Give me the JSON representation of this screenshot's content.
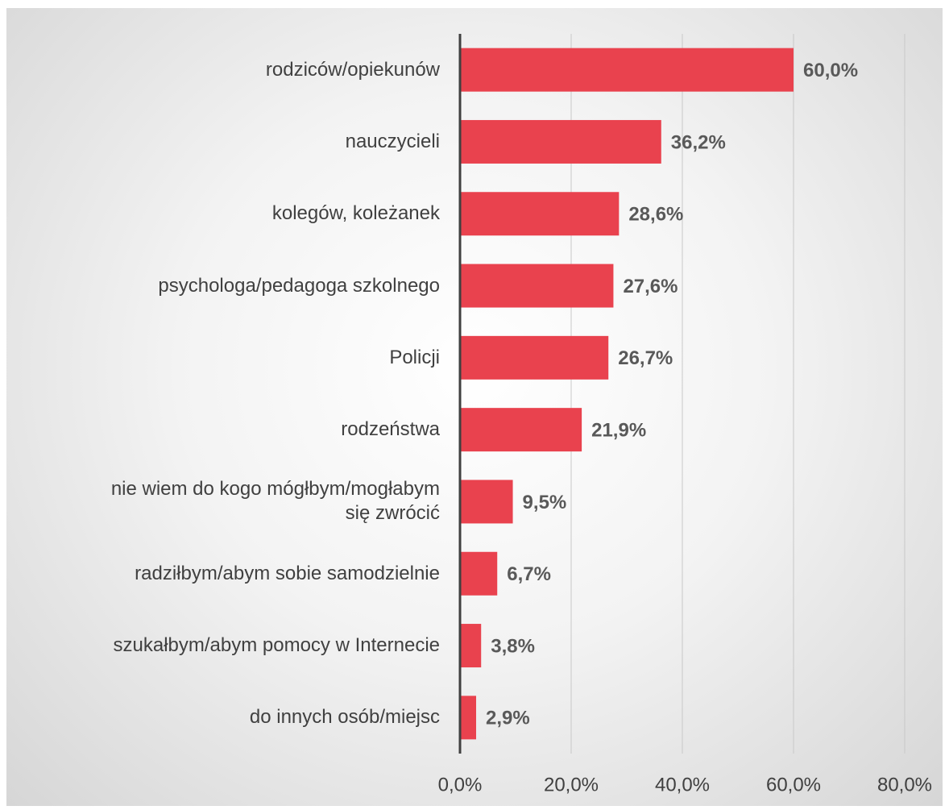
{
  "chart_data": {
    "type": "barh",
    "categories": [
      "rodziców/opiekunów",
      "nauczycieli",
      "kolegów, koleżanek",
      "psychologa/pedagoga szkolnego",
      "Policji",
      "rodzeństwa",
      "nie wiem do kogo mógłbym/mogłabym się zwrócić",
      "radziłbym/abym sobie samodzielnie",
      "szukałbym/abym pomocy w Internecie",
      "do innych osób/miejsc"
    ],
    "values": [
      60.0,
      36.2,
      28.6,
      27.6,
      26.7,
      21.9,
      9.5,
      6.7,
      3.8,
      2.9
    ],
    "value_labels": [
      "60,0%",
      "36,2%",
      "28,6%",
      "27,6%",
      "26,7%",
      "21,9%",
      "9,5%",
      "6,7%",
      "3,8%",
      "2,9%"
    ],
    "color": "#e9424e",
    "xlim": [
      0,
      80
    ],
    "xticks": [
      {
        "value": 0,
        "label": "0,0%"
      },
      {
        "value": 20,
        "label": "20,0%"
      },
      {
        "value": 40,
        "label": "40,0%"
      },
      {
        "value": 60,
        "label": "60,0%"
      },
      {
        "value": 80,
        "label": "80,0%"
      }
    ],
    "grid": true
  }
}
